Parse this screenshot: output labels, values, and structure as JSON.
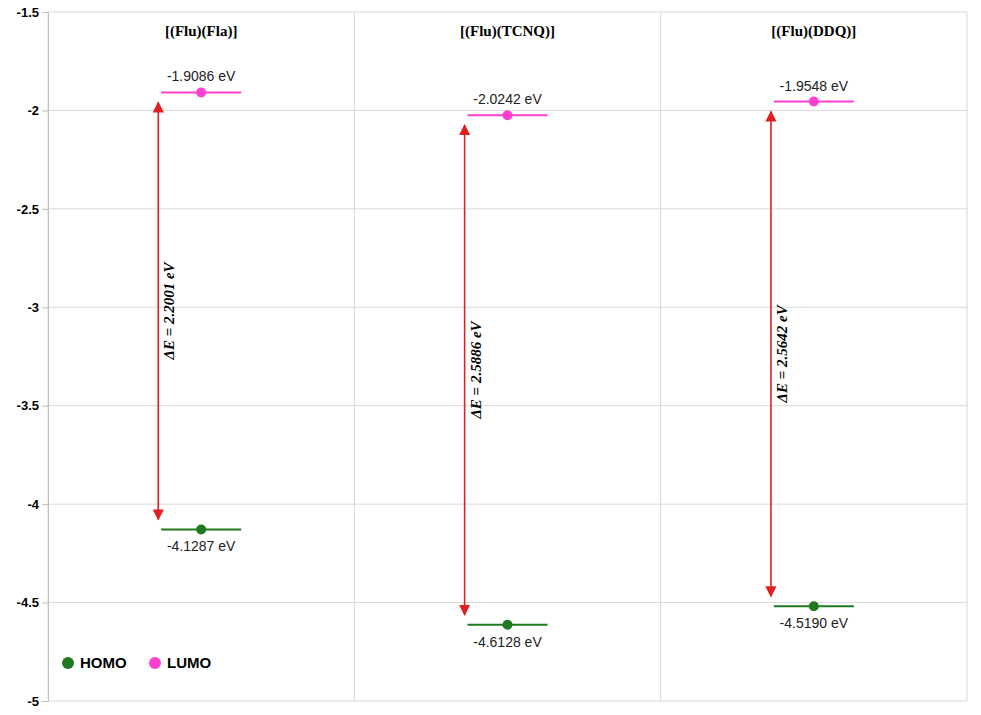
{
  "chart_data": {
    "type": "energy_level",
    "categories": [
      "[(Flu)(Fla)]",
      "[(Flu)(TCNQ)]",
      "[(Flu)(DDQ)]"
    ],
    "series": [
      {
        "name": "HOMO",
        "color": "#1f7a1f",
        "marker": "circle",
        "values": [
          -4.1287,
          -4.6128,
          -4.519
        ],
        "value_labels": [
          "-4.1287 eV",
          "-4.6128 eV",
          "-4.5190 eV"
        ]
      },
      {
        "name": "LUMO",
        "color": "#ff3fcf",
        "marker": "circle",
        "values": [
          -1.9086,
          -2.0242,
          -1.9548
        ],
        "value_labels": [
          "-1.9086 eV",
          "-2.0242 eV",
          "-1.9548 eV"
        ]
      }
    ],
    "delta_e": {
      "values": [
        2.2001,
        2.5886,
        2.5642
      ],
      "value_labels": [
        "ΔE = 2.2001 eV",
        "ΔE = 2.5886 eV",
        "ΔE = 2.5642 eV"
      ]
    },
    "ylim": [
      -5,
      -1.5
    ],
    "yticks": [
      -5,
      -4.5,
      -4,
      -3.5,
      -3,
      -2.5,
      -2,
      -1.5
    ],
    "grid": true,
    "legend": "lower left",
    "data_labels": true
  }
}
